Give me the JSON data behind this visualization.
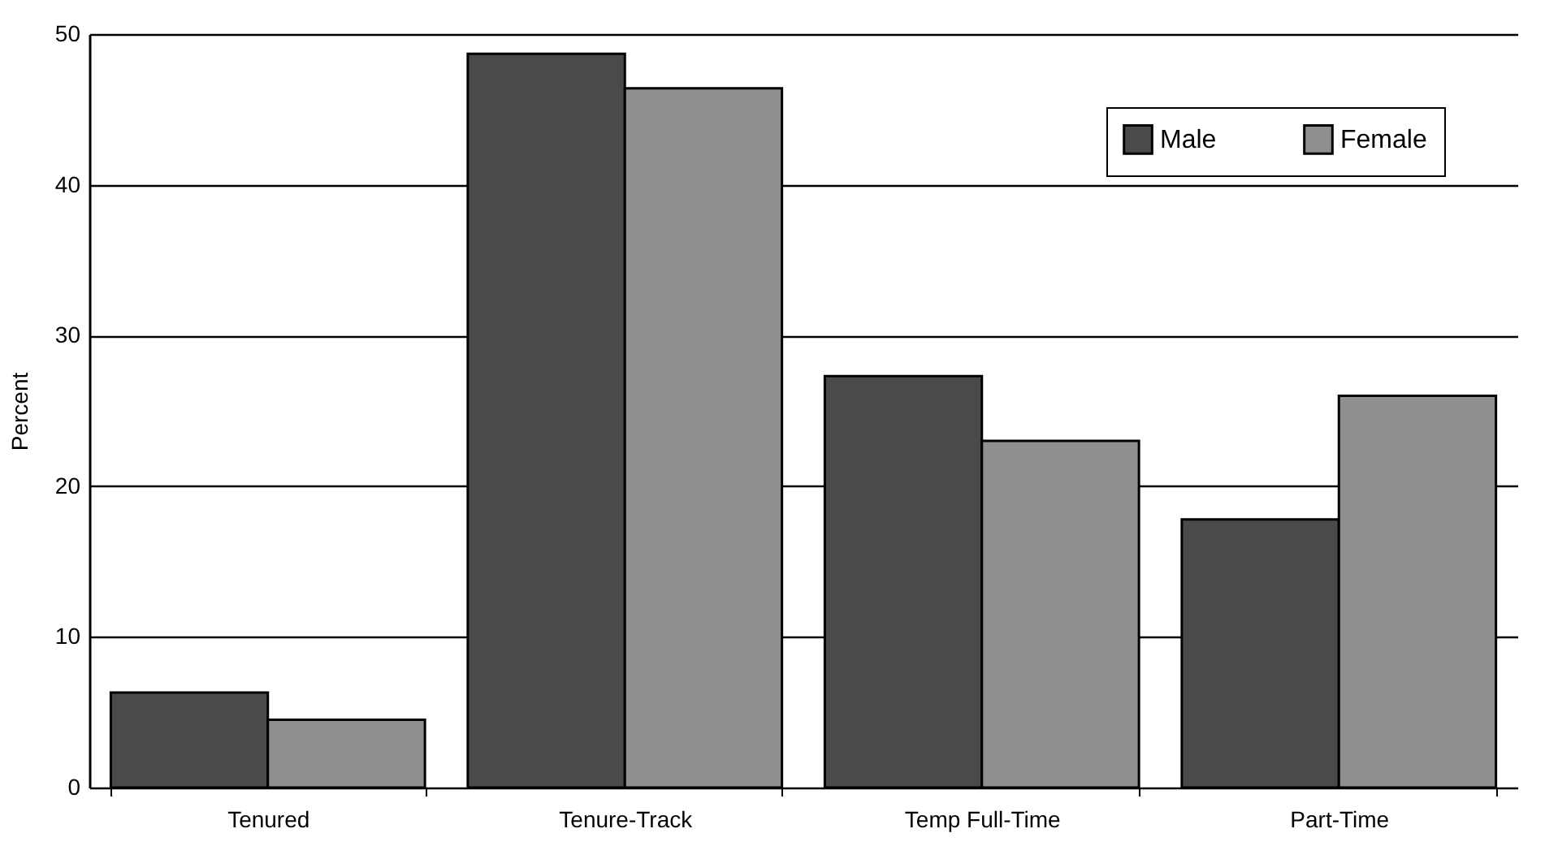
{
  "chart_data": {
    "type": "bar",
    "ylabel": "Percent",
    "categories": [
      "Tenured",
      "Tenure-Track",
      "Temp Full-Time",
      "Part-Time"
    ],
    "series": [
      {
        "name": "Male",
        "color": "#4a4a4a",
        "values": [
          6.3,
          48.7,
          27.3,
          17.8
        ]
      },
      {
        "name": "Female",
        "color": "#8f8f8f",
        "values": [
          4.5,
          46.4,
          23.0,
          26.0
        ]
      }
    ],
    "ylim": [
      0,
      50
    ],
    "yticks": [
      0,
      10,
      20,
      30,
      40,
      50
    ],
    "grid": "y",
    "legend": "top right"
  }
}
